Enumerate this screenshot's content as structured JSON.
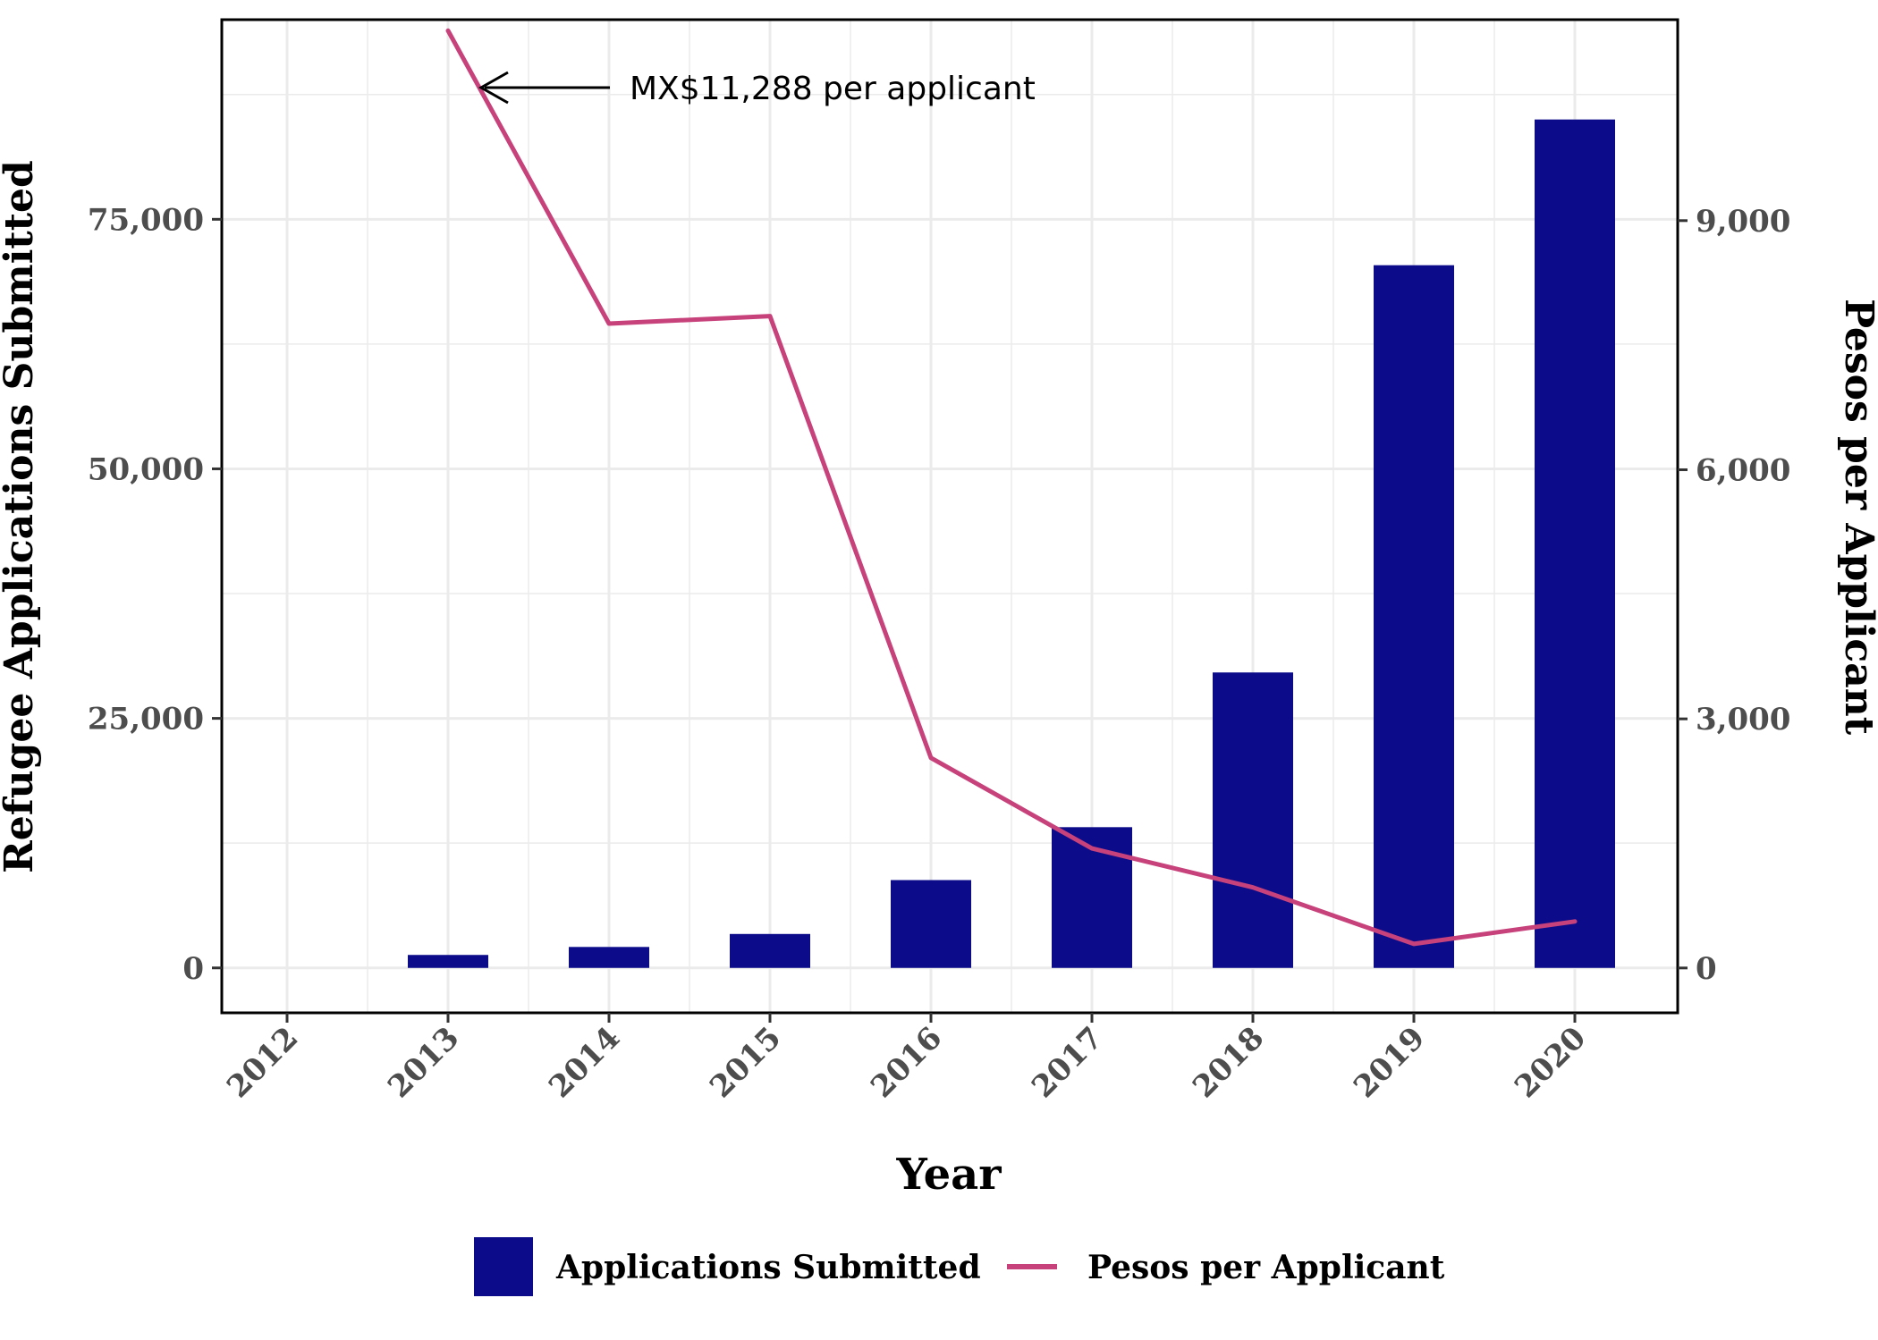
{
  "chart_data": {
    "type": "bar",
    "title": "",
    "xlabel": "Year",
    "ylabel": "Refugee Applications Submitted",
    "y2label": "Pesos per Applicant",
    "categories": [
      "2012",
      "2013",
      "2014",
      "2015",
      "2016",
      "2017",
      "2018",
      "2019",
      "2020"
    ],
    "series": [
      {
        "name": "Applications Submitted",
        "type": "bar",
        "axis": "left",
        "color": "#0c0c8a",
        "values": [
          0,
          1300,
          2100,
          3400,
          8800,
          14100,
          29600,
          70400,
          85000
        ]
      },
      {
        "name": "Pesos per Applicant",
        "type": "line",
        "axis": "right",
        "color": "#c7417a",
        "values": [
          null,
          11288,
          7760,
          7850,
          2530,
          1440,
          970,
          290,
          560
        ]
      }
    ],
    "ylim": [
      -4500,
      95000
    ],
    "y_ticks": [
      0,
      25000,
      50000,
      75000
    ],
    "y_tick_labels": [
      "0",
      "25,000",
      "50,000",
      "75,000"
    ],
    "y2lim": [
      -540,
      11420
    ],
    "y2_ticks": [
      0,
      3000,
      6000,
      9000
    ],
    "y2_tick_labels": [
      "0",
      "3,000",
      "6,000",
      "9,000"
    ],
    "grid": true,
    "legend_position": "bottom",
    "annotation": {
      "text": "MX$11,288 per applicant",
      "points_to": {
        "x": "2013",
        "series": "Pesos per Applicant",
        "value": 11288
      }
    }
  }
}
